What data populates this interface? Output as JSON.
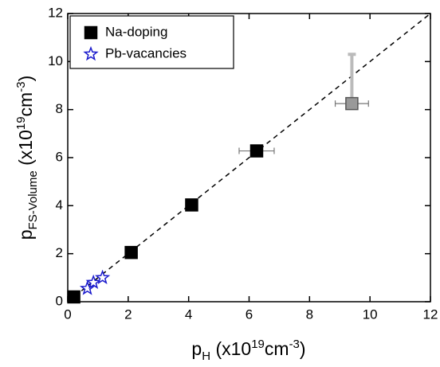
{
  "chart_data": {
    "type": "scatter",
    "xlabel": [
      "p",
      "H",
      " (x10",
      "19",
      "cm",
      "-3",
      ")"
    ],
    "ylabel": [
      "p",
      "FS-Volume",
      " (x10",
      "19",
      "cm",
      "-3",
      ")"
    ],
    "xlim": [
      0,
      12
    ],
    "ylim": [
      0,
      12
    ],
    "xticks": [
      0,
      2,
      4,
      6,
      8,
      10,
      12
    ],
    "yticks": [
      0,
      2,
      4,
      6,
      8,
      10,
      12
    ],
    "legend": "upper left",
    "diagonal": {
      "x": [
        0,
        12
      ],
      "y": [
        0,
        12
      ],
      "color": "#000000"
    },
    "series": [
      {
        "name": "Na-doping",
        "marker": "square",
        "color": "#000000",
        "point_colors": [
          "#000000",
          "#000000",
          "#000000",
          "#000000",
          "#999999"
        ],
        "x": [
          0.2,
          2.1,
          4.1,
          6.25,
          9.4
        ],
        "values": [
          0.2,
          2.05,
          4.03,
          6.28,
          8.25
        ],
        "x_errors": [
          null,
          null,
          null,
          0.58,
          0.55
        ],
        "y_errors_plus": [
          null,
          null,
          null,
          null,
          2.05
        ]
      },
      {
        "name": "Pb-vacancies",
        "marker": "star",
        "color": "#1a1acc",
        "x": [
          0.65,
          0.85,
          1.15
        ],
        "values": [
          0.55,
          0.8,
          1.0
        ]
      }
    ]
  }
}
